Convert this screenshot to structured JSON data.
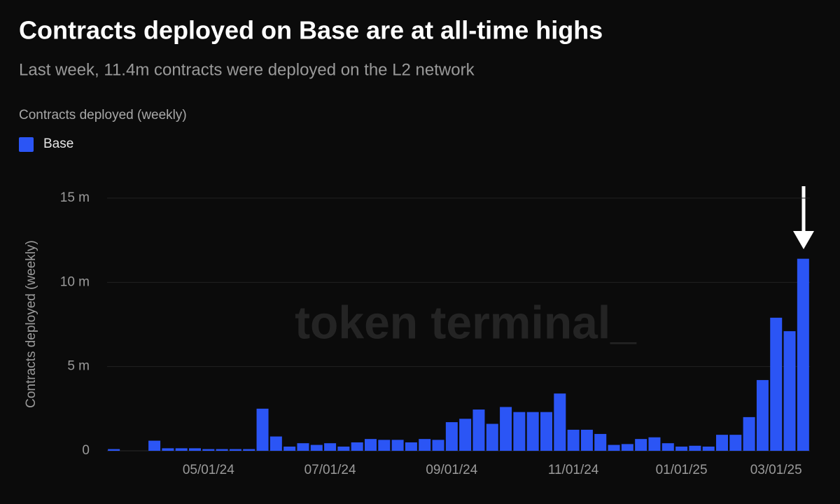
{
  "chart_data": {
    "type": "bar",
    "title": "Contracts deployed on Base are at all-time highs",
    "subtitle": "Last week, 11.4m contracts were deployed on the L2 network",
    "legend_title": "Contracts deployed (weekly)",
    "ylabel": "Contracts deployed (weekly)",
    "watermark": "token terminal_",
    "categories": [
      null,
      null,
      null,
      null,
      null,
      null,
      null,
      "05/01/24",
      null,
      null,
      null,
      null,
      null,
      null,
      null,
      null,
      "07/01/24",
      null,
      null,
      null,
      null,
      null,
      null,
      null,
      null,
      "09/01/24",
      null,
      null,
      null,
      null,
      null,
      null,
      null,
      null,
      "11/01/24",
      null,
      null,
      null,
      null,
      null,
      null,
      null,
      "01/01/25",
      null,
      null,
      null,
      null,
      null,
      null,
      "03/01/25",
      null,
      null
    ],
    "series": [
      {
        "name": "Base",
        "color": "#2b55f5",
        "values": [
          0.1,
          0,
          0,
          0.6,
          0.15,
          0.15,
          0.15,
          0.1,
          0.1,
          0.1,
          0.1,
          2.5,
          0.85,
          0.25,
          0.45,
          0.35,
          0.45,
          0.25,
          0.5,
          0.7,
          0.65,
          0.65,
          0.5,
          0.7,
          0.65,
          1.7,
          1.9,
          2.45,
          1.6,
          2.6,
          2.3,
          2.3,
          2.3,
          3.4,
          1.25,
          1.25,
          1.0,
          0.35,
          0.4,
          0.7,
          0.8,
          0.45,
          0.25,
          0.3,
          0.25,
          0.95,
          0.95,
          2.0,
          4.2,
          7.9,
          7.1,
          11.4
        ]
      }
    ],
    "ylim": [
      0,
      15
    ],
    "yticks": [
      0,
      {
        "value": 5,
        "label": "5 m"
      },
      {
        "value": 10,
        "label": "10 m"
      },
      {
        "value": 15,
        "label": "15 m"
      }
    ],
    "grid": true,
    "legend": "top-left"
  }
}
